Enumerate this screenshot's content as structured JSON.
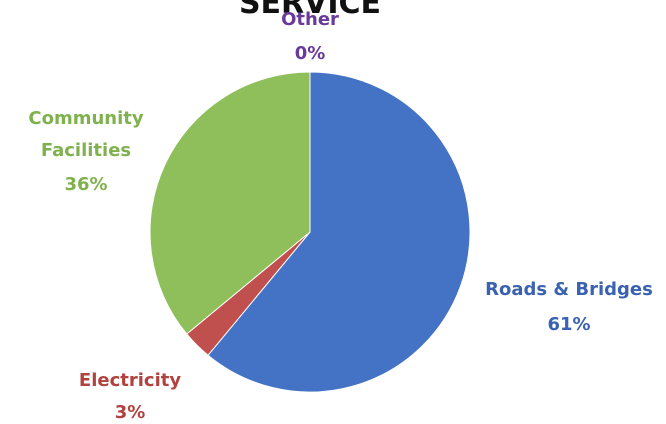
{
  "chart_data": {
    "type": "pie",
    "title": "SERVICE",
    "slices": [
      {
        "label": "Other",
        "value_label": "0%",
        "value": 0,
        "color": "#7030a0"
      },
      {
        "label": "Roads & Bridges",
        "value_label": "61%",
        "value": 61,
        "color": "#4472c4"
      },
      {
        "label": "Electricity",
        "value_label": "3%",
        "value": 3,
        "color": "#c0504d"
      },
      {
        "label": "Community Facilities",
        "value_label": "36%",
        "value": 36,
        "color": "#8fbf5a"
      }
    ]
  }
}
